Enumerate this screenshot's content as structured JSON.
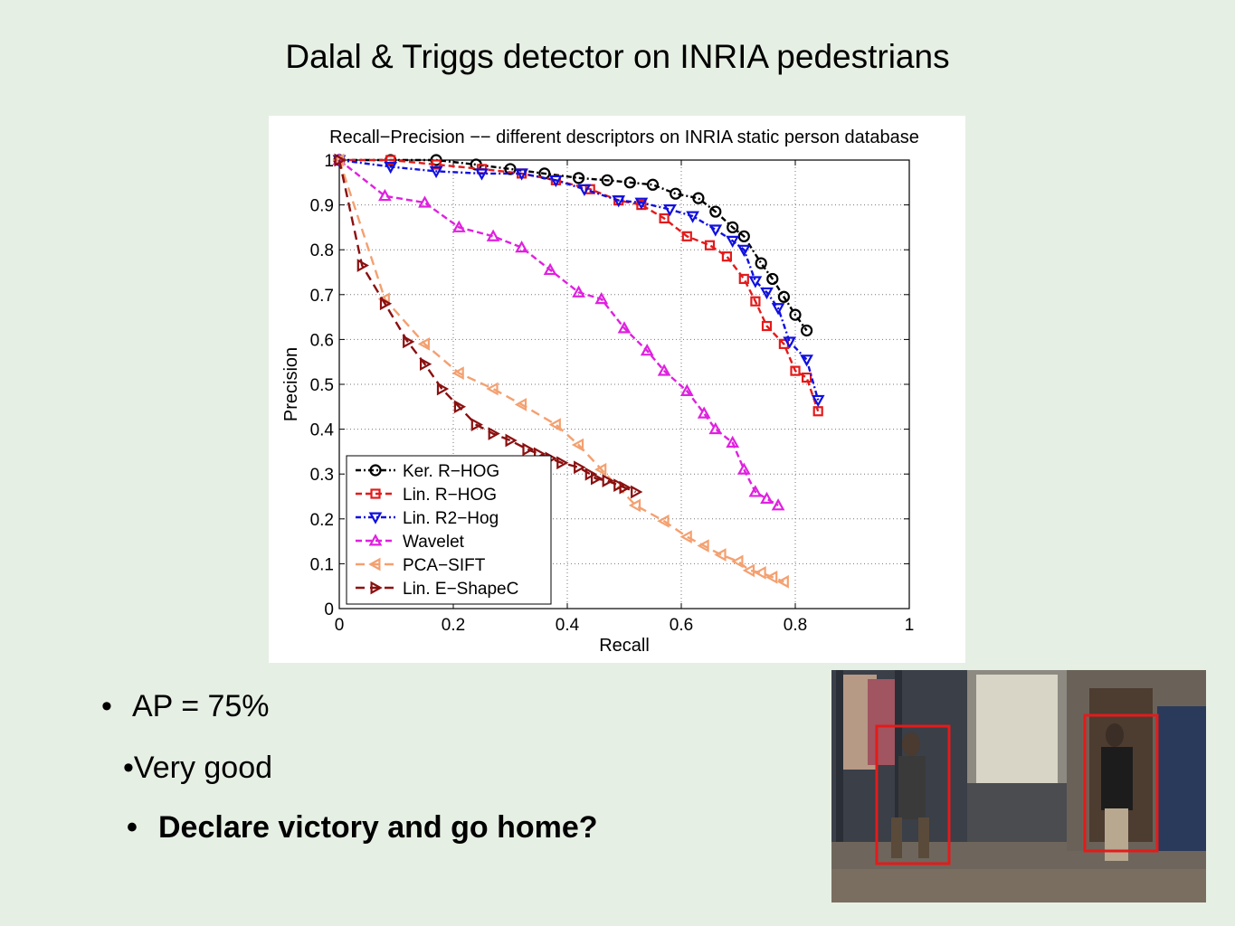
{
  "slide": {
    "title": "Dalal & Triggs detector on INRIA pedestrians",
    "bullets": [
      {
        "dot": "•",
        "text": "AP = 75%"
      },
      {
        "dot": "•",
        "text": "Very good"
      },
      {
        "dot": "•",
        "text": "Declare victory and go home?"
      }
    ]
  },
  "photo": {
    "content": "street scene with two pedestrians in red detection boxes",
    "box_color": "#e31b1b"
  },
  "chart_data": {
    "type": "line",
    "title": "Recall−Precision −− different descriptors on INRIA static person database",
    "xlabel": "Recall",
    "ylabel": "Precision",
    "xlim": [
      0,
      1
    ],
    "ylim": [
      0,
      1
    ],
    "xticks": [
      0,
      0.2,
      0.4,
      0.6,
      0.8,
      1
    ],
    "xtick_labels": [
      "0",
      "0.2",
      "0.4",
      "0.6",
      "0.8",
      "1"
    ],
    "yticks": [
      0,
      0.1,
      0.2,
      0.3,
      0.4,
      0.5,
      0.6,
      0.7,
      0.8,
      0.9,
      1
    ],
    "ytick_labels": [
      "0",
      "0.1",
      "0.2",
      "0.3",
      "0.4",
      "0.5",
      "0.6",
      "0.7",
      "0.8",
      "0.9",
      "1"
    ],
    "grid": true,
    "legend_position": "lower-left",
    "series": [
      {
        "name": "Ker. R−HOG",
        "color": "#000000",
        "marker": "circle",
        "dash": "6,3,2,3",
        "x": [
          0,
          0.09,
          0.17,
          0.24,
          0.3,
          0.36,
          0.42,
          0.47,
          0.51,
          0.55,
          0.59,
          0.63,
          0.66,
          0.69,
          0.71,
          0.74,
          0.76,
          0.78,
          0.8,
          0.82
        ],
        "y": [
          1,
          1,
          1,
          0.99,
          0.98,
          0.97,
          0.96,
          0.955,
          0.95,
          0.945,
          0.925,
          0.915,
          0.885,
          0.85,
          0.83,
          0.77,
          0.735,
          0.695,
          0.655,
          0.62
        ]
      },
      {
        "name": "Lin. R−HOG",
        "color": "#e31b1b",
        "marker": "square",
        "dash": "7,4",
        "x": [
          0,
          0.09,
          0.17,
          0.25,
          0.32,
          0.38,
          0.44,
          0.49,
          0.53,
          0.57,
          0.61,
          0.65,
          0.68,
          0.71,
          0.73,
          0.75,
          0.78,
          0.8,
          0.82,
          0.84
        ],
        "y": [
          1,
          1,
          0.99,
          0.98,
          0.97,
          0.955,
          0.935,
          0.91,
          0.9,
          0.87,
          0.83,
          0.81,
          0.785,
          0.735,
          0.685,
          0.63,
          0.59,
          0.53,
          0.515,
          0.44
        ]
      },
      {
        "name": "Lin. R2−Hog",
        "color": "#1010e0",
        "marker": "triangle-down",
        "dash": "6,3,2,3",
        "x": [
          0,
          0.09,
          0.17,
          0.25,
          0.32,
          0.38,
          0.43,
          0.49,
          0.53,
          0.58,
          0.62,
          0.66,
          0.69,
          0.71,
          0.73,
          0.75,
          0.77,
          0.79,
          0.82,
          0.84
        ],
        "y": [
          1,
          0.985,
          0.975,
          0.97,
          0.97,
          0.955,
          0.935,
          0.91,
          0.905,
          0.89,
          0.875,
          0.845,
          0.82,
          0.8,
          0.73,
          0.705,
          0.67,
          0.595,
          0.555,
          0.465
        ]
      },
      {
        "name": "Wavelet",
        "color": "#e020e0",
        "marker": "triangle-up",
        "dash": "7,4",
        "x": [
          0,
          0.08,
          0.15,
          0.21,
          0.27,
          0.32,
          0.37,
          0.42,
          0.46,
          0.5,
          0.54,
          0.57,
          0.61,
          0.64,
          0.66,
          0.69,
          0.71,
          0.73,
          0.75,
          0.77
        ],
        "y": [
          1,
          0.92,
          0.905,
          0.85,
          0.83,
          0.805,
          0.755,
          0.705,
          0.69,
          0.625,
          0.575,
          0.53,
          0.485,
          0.435,
          0.4,
          0.37,
          0.31,
          0.26,
          0.245,
          0.23
        ]
      },
      {
        "name": "PCA−SIFT",
        "color": "#f4a070",
        "marker": "triangle-left",
        "dash": "10,6",
        "x": [
          0,
          0.08,
          0.15,
          0.21,
          0.27,
          0.32,
          0.38,
          0.42,
          0.46,
          0.52,
          0.57,
          0.61,
          0.64,
          0.67,
          0.7,
          0.72,
          0.74,
          0.76,
          0.78
        ],
        "y": [
          1,
          0.69,
          0.59,
          0.525,
          0.49,
          0.455,
          0.41,
          0.365,
          0.31,
          0.23,
          0.195,
          0.16,
          0.14,
          0.12,
          0.105,
          0.085,
          0.08,
          0.07,
          0.06
        ]
      },
      {
        "name": "Lin. E−ShapeC",
        "color": "#8b1010",
        "marker": "triangle-right",
        "dash": "10,6",
        "x": [
          0,
          0.04,
          0.08,
          0.12,
          0.15,
          0.18,
          0.21,
          0.24,
          0.27,
          0.3,
          0.33,
          0.35,
          0.37,
          0.39,
          0.42,
          0.44,
          0.45,
          0.47,
          0.49,
          0.5,
          0.52
        ],
        "y": [
          1,
          0.765,
          0.68,
          0.595,
          0.545,
          0.49,
          0.45,
          0.41,
          0.39,
          0.375,
          0.355,
          0.345,
          0.335,
          0.325,
          0.315,
          0.3,
          0.29,
          0.285,
          0.275,
          0.27,
          0.26
        ]
      }
    ]
  }
}
